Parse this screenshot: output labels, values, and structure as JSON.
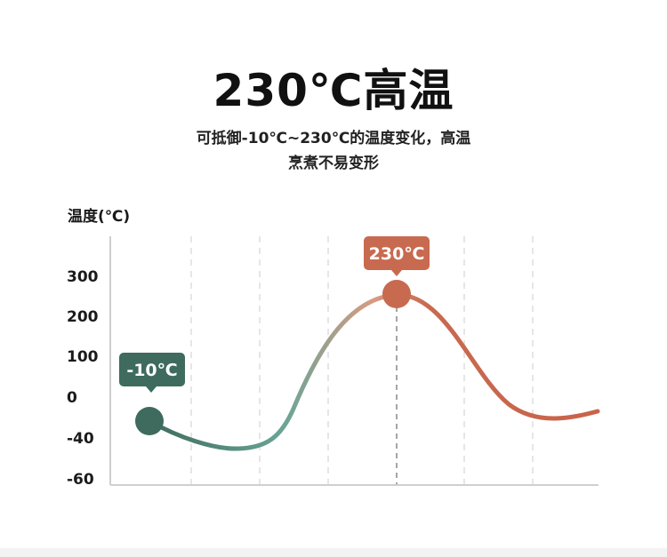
{
  "headline": "230℃高温",
  "subtitle": {
    "line1": "可抵御-10℃~230℃的温度变化，高温",
    "line2": "烹煮不易变形"
  },
  "colors": {
    "cold": "#3e6b5d",
    "cold_mid": "#5f9a8c",
    "hot": "#c86a50",
    "hot_light": "#d89b82",
    "axis": "#cccccc",
    "grid": "#dddddd"
  },
  "chart_data": {
    "type": "line",
    "ylabel": "温度(℃)",
    "y_ticks": [
      "300",
      "200",
      "100",
      "0",
      "-40",
      "-60"
    ],
    "grid": "vertical-dashed",
    "annotations": [
      {
        "label": "-10℃",
        "value": -10,
        "marker": "start"
      },
      {
        "label": "230℃",
        "value": 230,
        "marker": "peak"
      }
    ]
  }
}
